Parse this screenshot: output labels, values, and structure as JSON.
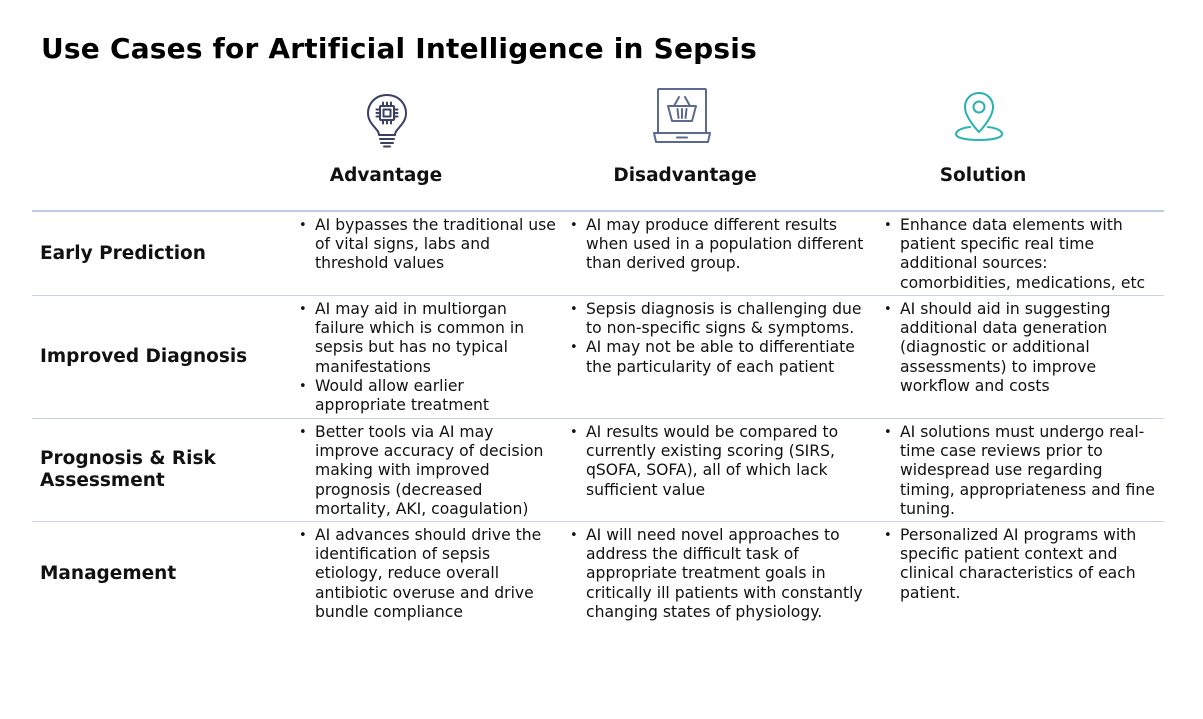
{
  "title": "Use Cases for Artificial Intelligence in Sepsis",
  "columns": [
    {
      "label": "Advantage",
      "icon": "ai-chip-lightbulb-icon",
      "icon_color": "#3a3f66"
    },
    {
      "label": "Disadvantage",
      "icon": "laptop-shopping-basket-icon",
      "icon_color": "#5b6b8f"
    },
    {
      "label": "Solution",
      "icon": "location-pin-icon",
      "icon_color": "#27b3b0"
    }
  ],
  "rows": [
    {
      "label": "Early Prediction",
      "advantage": [
        "AI bypasses the traditional use of vital signs, labs and threshold values"
      ],
      "disadvantage": [
        "AI may produce different results when used in a population different than derived group."
      ],
      "solution": [
        "Enhance data elements with patient specific real time additional sources: comorbidities, medications, etc"
      ]
    },
    {
      "label": "Improved Diagnosis",
      "advantage": [
        "AI may aid in multiorgan failure which is common in sepsis but has no typical manifestations",
        "Would allow earlier appropriate treatment"
      ],
      "disadvantage": [
        "Sepsis diagnosis is challenging due to non-specific signs & symptoms.",
        "AI may not be able to differentiate the particularity of each patient"
      ],
      "solution": [
        "AI should aid in suggesting additional data generation (diagnostic or additional assessments) to improve workflow and costs"
      ]
    },
    {
      "label": "Prognosis & Risk Assessment",
      "advantage": [
        "Better tools via AI may improve accuracy of decision making with improved prognosis (decreased mortality, AKI, coagulation)"
      ],
      "disadvantage": [
        "AI results would be compared to currently existing scoring (SIRS, qSOFA, SOFA), all of which lack sufficient value"
      ],
      "solution": [
        "AI solutions must undergo real-time case reviews prior to widespread use regarding timing, appropriateness and fine tuning."
      ]
    },
    {
      "label": "Management",
      "advantage": [
        "AI advances should drive the identification of sepsis etiology, reduce overall antibiotic overuse and drive bundle compliance"
      ],
      "disadvantage": [
        "AI will need novel approaches to address the difficult task of appropriate treatment goals in critically ill patients with constantly changing states of physiology."
      ],
      "solution": [
        "Personalized AI programs with specific patient context and clinical characteristics of each patient."
      ]
    }
  ]
}
